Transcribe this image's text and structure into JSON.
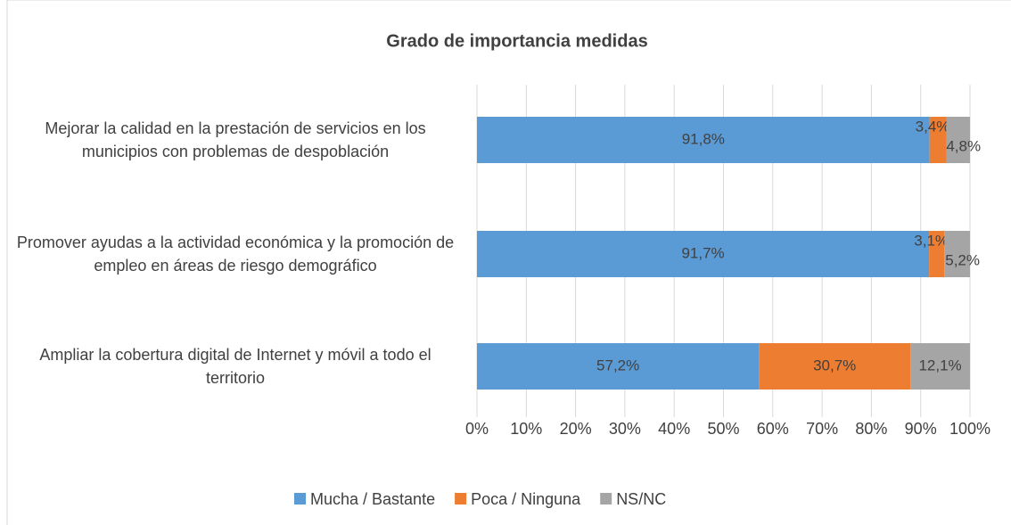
{
  "chart_data": {
    "type": "stacked_barh",
    "title": "Grado de importancia medidas",
    "categories": [
      "Mejorar la calidad en la prestación de servicios en los municipios con problemas de despoblación",
      "Promover ayudas a la actividad económica y la promoción de empleo en áreas de riesgo demográfico",
      "Ampliar la cobertura digital de Internet y móvil a todo el territorio"
    ],
    "series": [
      {
        "name": "Mucha / Bastante",
        "color": "#5b9bd5",
        "values": [
          91.8,
          91.7,
          57.2
        ],
        "value_labels": [
          "91,8%",
          "91,7%",
          "57,2%"
        ]
      },
      {
        "name": "Poca / Ninguna",
        "color": "#ed7d31",
        "values": [
          3.4,
          3.1,
          30.7
        ],
        "value_labels": [
          "3,4%",
          "3,1%",
          "30,7%"
        ]
      },
      {
        "name": "NS/NC",
        "color": "#a5a5a5",
        "values": [
          4.8,
          5.2,
          12.1
        ],
        "value_labels": [
          "4,8%",
          "5,2%",
          "12,1%"
        ]
      }
    ],
    "xlim": [
      0,
      100
    ],
    "xticks": [
      {
        "value": 0,
        "label": "0%"
      },
      {
        "value": 10,
        "label": "10%"
      },
      {
        "value": 20,
        "label": "20%"
      },
      {
        "value": 30,
        "label": "30%"
      },
      {
        "value": 40,
        "label": "40%"
      },
      {
        "value": 50,
        "label": "50%"
      },
      {
        "value": 60,
        "label": "60%"
      },
      {
        "value": 70,
        "label": "70%"
      },
      {
        "value": 80,
        "label": "80%"
      },
      {
        "value": 90,
        "label": "90%"
      },
      {
        "value": 100,
        "label": "100%"
      }
    ],
    "grid": true,
    "legend": "bottom"
  }
}
